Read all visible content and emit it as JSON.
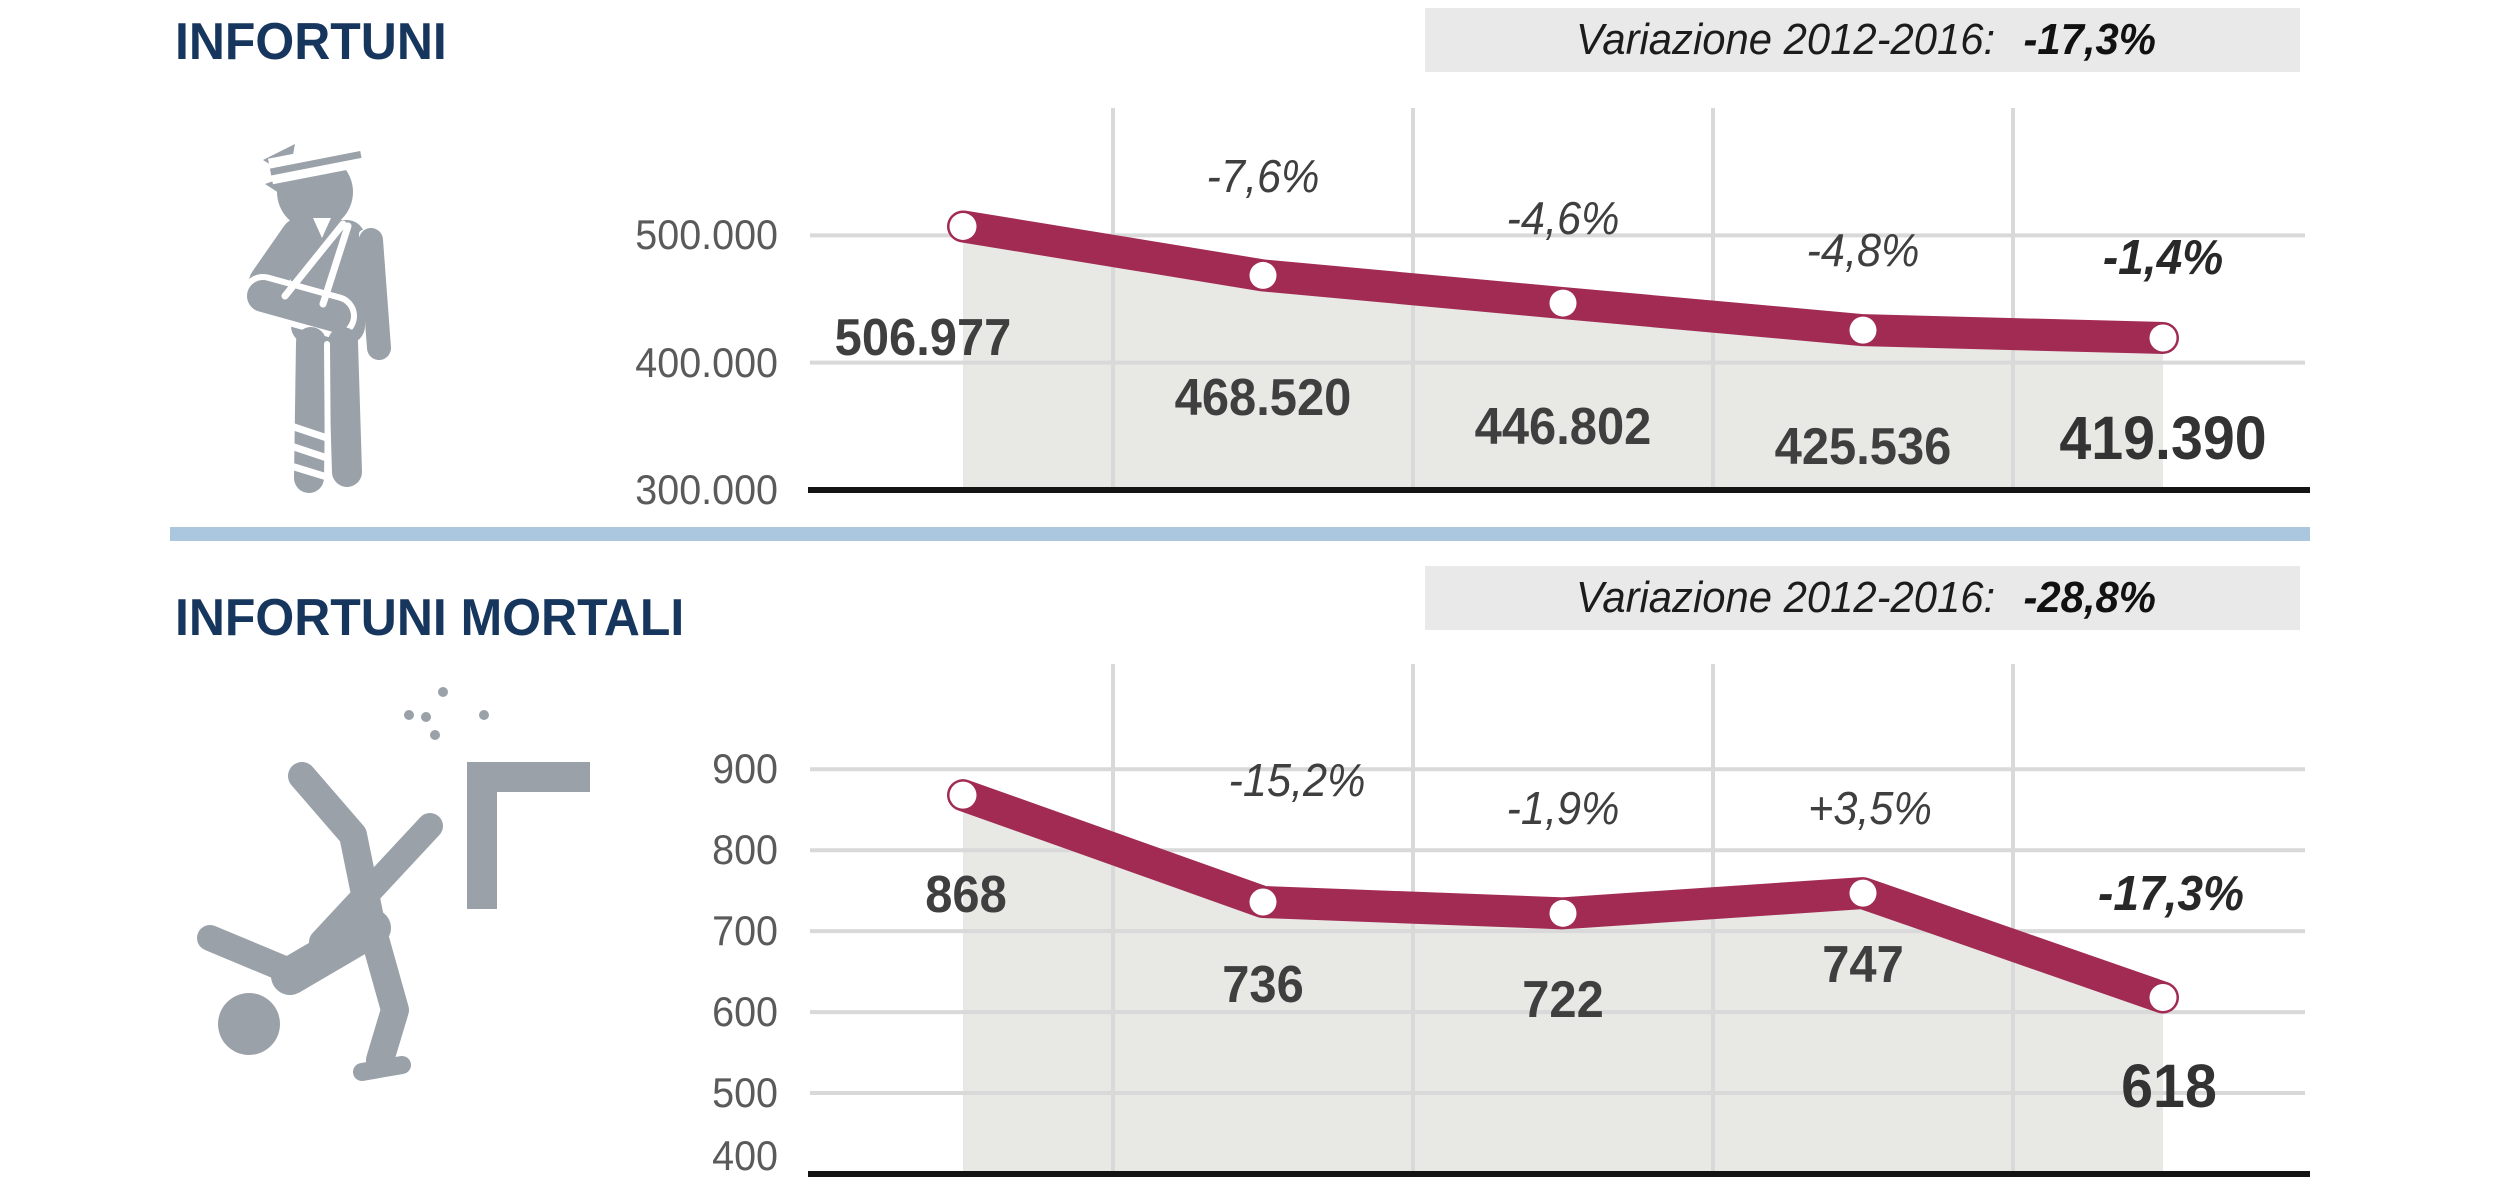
{
  "colors": {
    "line": "#a12b52",
    "marker_fill": "#ffffff",
    "area_fill": "#e8e8e5",
    "gridline": "#d9d9d9",
    "axis": "#141414",
    "title": "#17365d",
    "divider": "#abc7e0",
    "box_background": "#e9e9e9",
    "icon_gray": "#9aa1a9",
    "tick_text": "#5a5a5a",
    "value_text": "#3f3f3f"
  },
  "sections": [
    {
      "icon": "injured-person-icon",
      "variation_label": "Variazione 2012-2016:",
      "variation_value": "-17,3%"
    },
    {
      "icon": "falling-person-icon",
      "variation_label": "Variazione 2012-2016:",
      "variation_value": "-28,8%"
    }
  ],
  "chart_data": [
    {
      "type": "line",
      "title": "INFORTUNI",
      "values": [
        506977,
        468520,
        446802,
        425536,
        419390
      ],
      "value_labels": [
        "506.977",
        "468.520",
        "446.802",
        "425.536",
        "419.390"
      ],
      "pct_change_labels": [
        "-7,6%",
        "-4,6%",
        "-4,8%",
        "-1,4%"
      ],
      "y_tick_labels": [
        "500.000",
        "400.000",
        "300.000"
      ],
      "y_tick_values": [
        500000,
        400000,
        300000
      ],
      "y_gridline_values": [
        500000,
        400000
      ],
      "ylim": [
        300000,
        600000
      ],
      "grid": true,
      "legend": "none",
      "area_under_line": true,
      "annotation": "Variazione 2012-2016: -17,3%"
    },
    {
      "type": "line",
      "title": "INFORTUNI MORTALI",
      "values": [
        868,
        736,
        722,
        747,
        618
      ],
      "value_labels": [
        "868",
        "736",
        "722",
        "747",
        "618"
      ],
      "pct_change_labels": [
        "-15,2%",
        "-1,9%",
        "+3,5%",
        "-17,3%"
      ],
      "y_tick_labels": [
        "900",
        "800",
        "700",
        "600",
        "500",
        "400"
      ],
      "y_tick_values": [
        900,
        800,
        700,
        600,
        500,
        400
      ],
      "y_gridline_values": [
        900,
        800,
        700,
        600,
        500
      ],
      "ylim": [
        400,
        1030
      ],
      "grid": true,
      "legend": "none",
      "area_under_line": true,
      "annotation": "Variazione 2012-2016: -28,8%"
    }
  ]
}
